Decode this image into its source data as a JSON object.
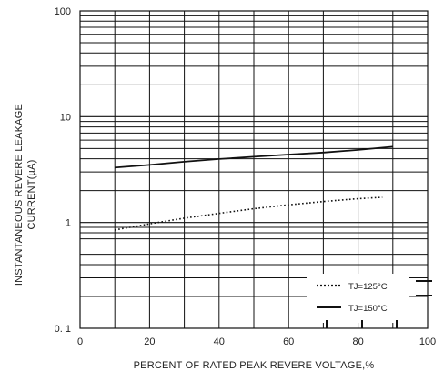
{
  "chart_data": {
    "type": "line",
    "xlabel": "PERCENT OF RATED PEAK REVERE VOLTAGE,%",
    "ylabel_line1": "INSTANTANEOUS REVERE LEAKAGE",
    "ylabel_line2": "CURRENT(µA)",
    "xlim": [
      0,
      100
    ],
    "ylim": [
      0.1,
      100
    ],
    "yscale": "log",
    "grid": true,
    "legend_position": "bottom-right",
    "x_ticks": [
      {
        "value": 0,
        "label": "0"
      },
      {
        "value": 20,
        "label": "20"
      },
      {
        "value": 40,
        "label": "40"
      },
      {
        "value": 60,
        "label": "60"
      },
      {
        "value": 80,
        "label": "80"
      },
      {
        "value": 100,
        "label": "100"
      }
    ],
    "y_ticks": [
      {
        "value": 100,
        "label": "100"
      },
      {
        "value": 10,
        "label": "10"
      },
      {
        "value": 1,
        "label": "1"
      },
      {
        "value": 0.1,
        "label": "0. 1"
      }
    ],
    "series": [
      {
        "name": "TJ=125°C",
        "style": "dotted",
        "color": "#111111",
        "x": [
          10,
          20,
          30,
          40,
          50,
          60,
          70,
          80,
          87
        ],
        "y": [
          0.85,
          0.97,
          1.1,
          1.22,
          1.35,
          1.47,
          1.58,
          1.68,
          1.73
        ]
      },
      {
        "name": "TJ=150°C",
        "style": "solid",
        "color": "#111111",
        "x": [
          10,
          20,
          30,
          40,
          50,
          60,
          70,
          80,
          90
        ],
        "y": [
          3.3,
          3.5,
          3.75,
          3.98,
          4.18,
          4.38,
          4.58,
          4.85,
          5.2
        ]
      }
    ]
  }
}
